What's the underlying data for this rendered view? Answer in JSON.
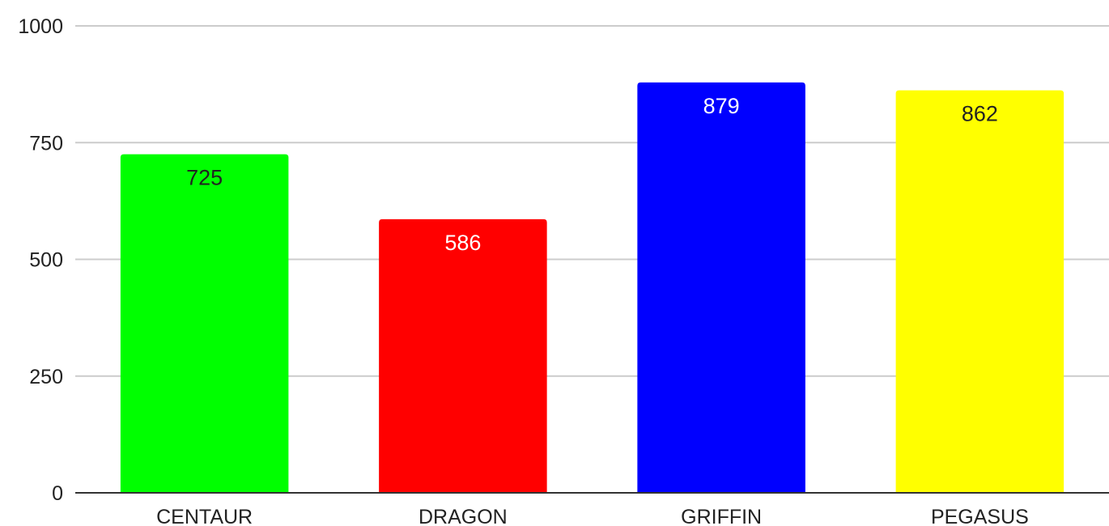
{
  "chart_data": {
    "type": "bar",
    "title": "",
    "xlabel": "",
    "ylabel": "",
    "categories": [
      "CENTAUR",
      "DRAGON",
      "GRIFFIN",
      "PEGASUS"
    ],
    "values": [
      725,
      586,
      879,
      862
    ],
    "data_labels": [
      "725",
      "586",
      "879",
      "862"
    ],
    "bar_colors": [
      "#00ff00",
      "#ff0000",
      "#0000ff",
      "#ffff00"
    ],
    "label_colors": [
      "#222222",
      "#ffffff",
      "#ffffff",
      "#222222"
    ],
    "ylim": [
      0,
      1000
    ],
    "yticks": [
      0,
      250,
      500,
      750,
      1000
    ],
    "ytick_labels": [
      "0",
      "250",
      "500",
      "750",
      "1000"
    ],
    "grid": true,
    "legend": "none"
  }
}
